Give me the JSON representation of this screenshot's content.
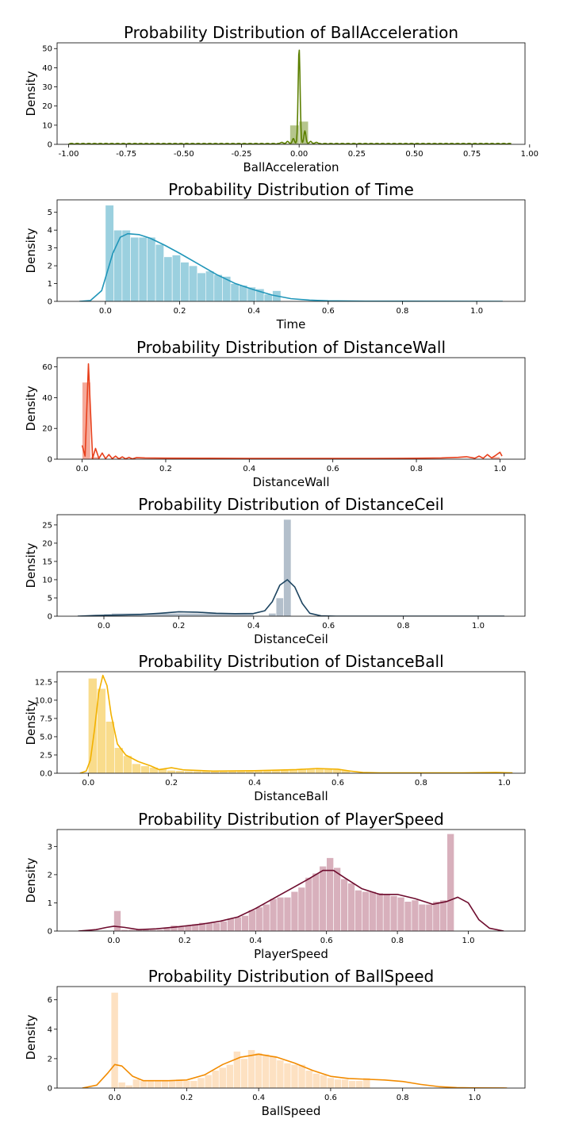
{
  "figure": {
    "chart_data": [
      {
        "type": "histogram",
        "title": "Probability Distribution of BallAcceleration",
        "xlabel": "BallAcceleration",
        "ylabel": "Density",
        "color": "#5b7f00",
        "xlim": [
          -1.05,
          0.98
        ],
        "ylim": [
          0,
          53
        ],
        "xticks": [
          -1.0,
          -0.75,
          -0.5,
          -0.25,
          0.0,
          0.25,
          0.5,
          0.75,
          1.0
        ],
        "xtick_labels": [
          "-1.00",
          "-0.75",
          "-0.50",
          "-0.25",
          "0.00",
          "0.25",
          "0.50",
          "0.75",
          "1.00"
        ],
        "yticks": [
          0,
          10,
          20,
          30,
          40,
          50
        ],
        "ytick_labels": [
          "0",
          "10",
          "20",
          "30",
          "40",
          "50"
        ],
        "bins": [
          {
            "x0": -0.08,
            "x1": -0.04,
            "h": 0.5
          },
          {
            "x0": -0.04,
            "x1": 0.0,
            "h": 10
          },
          {
            "x0": 0.0,
            "x1": 0.04,
            "h": 12
          },
          {
            "x0": 0.04,
            "x1": 0.08,
            "h": 0.5
          }
        ],
        "kde_kind": "oscillating",
        "kde": {
          "range": [
            -1.0,
            0.92
          ],
          "peaks": [
            [
              -0.025,
              3
            ],
            [
              0.0,
              50
            ],
            [
              0.025,
              7
            ],
            [
              -0.05,
              1.5
            ],
            [
              0.05,
              1.5
            ],
            [
              -0.075,
              1
            ],
            [
              0.075,
              1
            ]
          ],
          "osc_amp": 0.5,
          "osc_period": 0.025
        }
      },
      {
        "type": "histogram",
        "title": "Probability Distribution of Time",
        "xlabel": "Time",
        "ylabel": "Density",
        "color": "#2196b9",
        "xlim": [
          -0.13,
          1.13
        ],
        "ylim": [
          0,
          5.7
        ],
        "xticks": [
          0.0,
          0.2,
          0.4,
          0.6,
          0.8,
          1.0
        ],
        "xtick_labels": [
          "0.0",
          "0.2",
          "0.4",
          "0.6",
          "0.8",
          "1.0"
        ],
        "yticks": [
          0,
          1,
          2,
          3,
          4,
          5
        ],
        "ytick_labels": [
          "0",
          "1",
          "2",
          "3",
          "4",
          "5"
        ],
        "bins_start": 0.0,
        "bin_width": 0.0225,
        "bin_heights": [
          5.4,
          4.0,
          4.0,
          3.6,
          3.6,
          3.6,
          3.2,
          2.5,
          2.6,
          2.2,
          2.0,
          1.6,
          1.7,
          1.5,
          1.4,
          1.0,
          0.9,
          0.8,
          0.7,
          0.4,
          0.6
        ],
        "kde_kind": "points",
        "kde": [
          [
            -0.07,
            0
          ],
          [
            -0.04,
            0.05
          ],
          [
            -0.01,
            0.6
          ],
          [
            0.02,
            2.7
          ],
          [
            0.04,
            3.6
          ],
          [
            0.06,
            3.8
          ],
          [
            0.09,
            3.75
          ],
          [
            0.12,
            3.55
          ],
          [
            0.16,
            3.15
          ],
          [
            0.2,
            2.7
          ],
          [
            0.25,
            2.1
          ],
          [
            0.3,
            1.5
          ],
          [
            0.35,
            1.0
          ],
          [
            0.4,
            0.65
          ],
          [
            0.45,
            0.35
          ],
          [
            0.5,
            0.15
          ],
          [
            0.55,
            0.07
          ],
          [
            0.6,
            0.03
          ],
          [
            0.7,
            0.01
          ],
          [
            0.8,
            0.01
          ],
          [
            1.07,
            0.0
          ]
        ]
      },
      {
        "type": "histogram",
        "title": "Probability Distribution of DistanceWall",
        "xlabel": "DistanceWall",
        "ylabel": "Density",
        "color": "#e8401c",
        "xlim": [
          -0.06,
          1.06
        ],
        "ylim": [
          0,
          66
        ],
        "xticks": [
          0.0,
          0.2,
          0.4,
          0.6,
          0.8,
          1.0
        ],
        "xtick_labels": [
          "0.0",
          "0.2",
          "0.4",
          "0.6",
          "0.8",
          "1.0"
        ],
        "yticks": [
          0,
          20,
          40,
          60
        ],
        "ytick_labels": [
          "0",
          "20",
          "40",
          "60"
        ],
        "bins": [
          {
            "x0": 0.0,
            "x1": 0.02,
            "h": 50
          },
          {
            "x0": 0.02,
            "x1": 0.04,
            "h": 1.5
          },
          {
            "x0": 0.98,
            "x1": 1.0,
            "h": 1.5
          }
        ],
        "kde_kind": "points",
        "kde": [
          [
            0.0,
            9
          ],
          [
            0.007,
            2
          ],
          [
            0.015,
            62
          ],
          [
            0.025,
            0.5
          ],
          [
            0.032,
            7
          ],
          [
            0.04,
            0.5
          ],
          [
            0.048,
            4
          ],
          [
            0.056,
            0.3
          ],
          [
            0.064,
            3
          ],
          [
            0.072,
            0.3
          ],
          [
            0.08,
            2
          ],
          [
            0.088,
            0.2
          ],
          [
            0.096,
            1.5
          ],
          [
            0.104,
            0.2
          ],
          [
            0.112,
            1.2
          ],
          [
            0.12,
            0.2
          ],
          [
            0.13,
            1.0
          ],
          [
            0.15,
            0.8
          ],
          [
            0.2,
            0.7
          ],
          [
            0.3,
            0.6
          ],
          [
            0.4,
            0.5
          ],
          [
            0.5,
            0.5
          ],
          [
            0.6,
            0.5
          ],
          [
            0.7,
            0.5
          ],
          [
            0.8,
            0.6
          ],
          [
            0.86,
            0.8
          ],
          [
            0.9,
            1.2
          ],
          [
            0.92,
            1.6
          ],
          [
            0.94,
            0.6
          ],
          [
            0.95,
            2.0
          ],
          [
            0.96,
            0.6
          ],
          [
            0.97,
            3.0
          ],
          [
            0.98,
            0.8
          ],
          [
            0.99,
            2.5
          ],
          [
            1.0,
            4.5
          ],
          [
            1.005,
            2
          ]
        ]
      },
      {
        "type": "histogram",
        "title": "Probability Distribution of DistanceCeil",
        "xlabel": "DistanceCeil",
        "ylabel": "Density",
        "color": "#1d4460",
        "bar_color": "#56708b",
        "xlim": [
          -0.125,
          1.125
        ],
        "ylim": [
          0,
          27.8
        ],
        "xticks": [
          0.0,
          0.2,
          0.4,
          0.6,
          0.8,
          1.0
        ],
        "xtick_labels": [
          "0.0",
          "0.2",
          "0.4",
          "0.6",
          "0.8",
          "1.0"
        ],
        "yticks": [
          0,
          5,
          10,
          15,
          20,
          25
        ],
        "ytick_labels": [
          "0",
          "5",
          "10",
          "15",
          "20",
          "25"
        ],
        "bins": [
          {
            "x0": 0.0,
            "x1": 0.02,
            "h": 0.6
          },
          {
            "x0": 0.02,
            "x1": 0.4,
            "h": 0.8
          },
          {
            "x0": 0.44,
            "x1": 0.46,
            "h": 0.8
          },
          {
            "x0": 0.46,
            "x1": 0.48,
            "h": 5
          },
          {
            "x0": 0.48,
            "x1": 0.5,
            "h": 26.5
          }
        ],
        "kde_kind": "points",
        "kde": [
          [
            -0.07,
            0
          ],
          [
            -0.02,
            0.2
          ],
          [
            0.05,
            0.35
          ],
          [
            0.1,
            0.5
          ],
          [
            0.15,
            0.8
          ],
          [
            0.2,
            1.2
          ],
          [
            0.25,
            1.1
          ],
          [
            0.3,
            0.8
          ],
          [
            0.35,
            0.7
          ],
          [
            0.4,
            0.75
          ],
          [
            0.43,
            1.5
          ],
          [
            0.45,
            4
          ],
          [
            0.47,
            8.5
          ],
          [
            0.49,
            10
          ],
          [
            0.51,
            8
          ],
          [
            0.53,
            3.5
          ],
          [
            0.55,
            0.8
          ],
          [
            0.58,
            0.1
          ],
          [
            0.62,
            0
          ],
          [
            1.07,
            0
          ]
        ]
      },
      {
        "type": "histogram",
        "title": "Probability Distribution of DistanceBall",
        "xlabel": "DistanceBall",
        "ylabel": "Density",
        "color": "#f2b100",
        "xlim": [
          -0.075,
          1.05
        ],
        "ylim": [
          0,
          13.9
        ],
        "xticks": [
          0.0,
          0.2,
          0.4,
          0.6,
          0.8,
          1.0
        ],
        "xtick_labels": [
          "0.0",
          "0.2",
          "0.4",
          "0.6",
          "0.8",
          "1.0"
        ],
        "yticks": [
          0,
          2.5,
          5.0,
          7.5,
          10.0,
          12.5
        ],
        "ytick_labels": [
          "0.0",
          "2.5",
          "5.0",
          "7.5",
          "10.0",
          "12.5"
        ],
        "bins_start": 0.0,
        "bin_width": 0.021,
        "bin_heights": [
          13,
          11.6,
          7.1,
          3.5,
          2.4,
          1.3,
          1.0,
          0.8,
          0.6,
          0.4,
          0.35,
          0.3,
          0.3,
          0.3,
          0.3,
          0.3,
          0.3,
          0.3,
          0.3,
          0.35,
          0.4,
          0.45,
          0.5,
          0.55,
          0.55,
          0.6,
          0.7,
          0.6,
          0.5,
          0.4,
          0.1
        ],
        "kde_kind": "points",
        "kde": [
          [
            -0.02,
            0
          ],
          [
            -0.005,
            0.3
          ],
          [
            0.005,
            1.8
          ],
          [
            0.015,
            6
          ],
          [
            0.025,
            11
          ],
          [
            0.035,
            13.4
          ],
          [
            0.045,
            12
          ],
          [
            0.055,
            8
          ],
          [
            0.07,
            4
          ],
          [
            0.09,
            2.5
          ],
          [
            0.12,
            1.6
          ],
          [
            0.15,
            1.0
          ],
          [
            0.17,
            0.5
          ],
          [
            0.2,
            0.75
          ],
          [
            0.23,
            0.45
          ],
          [
            0.3,
            0.3
          ],
          [
            0.4,
            0.35
          ],
          [
            0.5,
            0.5
          ],
          [
            0.55,
            0.65
          ],
          [
            0.6,
            0.55
          ],
          [
            0.63,
            0.3
          ],
          [
            0.66,
            0.1
          ],
          [
            0.7,
            0.05
          ],
          [
            0.8,
            0.05
          ],
          [
            0.9,
            0.05
          ],
          [
            0.98,
            0.1
          ],
          [
            1.02,
            0.05
          ]
        ]
      },
      {
        "type": "histogram",
        "title": "Probability Distribution of PlayerSpeed",
        "xlabel": "PlayerSpeed",
        "ylabel": "Density",
        "color": "#6e0c2e",
        "bar_color": "#a8506b",
        "xlim": [
          -0.16,
          1.16
        ],
        "ylim": [
          0,
          3.6
        ],
        "xticks": [
          0.0,
          0.2,
          0.4,
          0.6,
          0.8,
          1.0
        ],
        "xtick_labels": [
          "0.0",
          "0.2",
          "0.4",
          "0.6",
          "0.8",
          "1.0"
        ],
        "yticks": [
          0,
          1,
          2,
          3
        ],
        "ytick_labels": [
          "0",
          "1",
          "2",
          "3"
        ],
        "bins_start": 0.0,
        "bin_width": 0.02,
        "bin_heights": [
          0.72,
          0.05,
          0.05,
          0.05,
          0.05,
          0.05,
          0.05,
          0.1,
          0.2,
          0.15,
          0.2,
          0.25,
          0.3,
          0.3,
          0.3,
          0.35,
          0.45,
          0.5,
          0.55,
          0.75,
          0.85,
          0.95,
          1.15,
          1.2,
          1.2,
          1.4,
          1.55,
          1.9,
          2.05,
          2.3,
          2.6,
          2.25,
          1.85,
          1.7,
          1.45,
          1.4,
          1.4,
          1.35,
          1.3,
          1.25,
          1.2,
          1.05,
          1.1,
          0.95,
          0.95,
          1.05,
          1.1,
          3.45
        ],
        "kde_kind": "points",
        "kde": [
          [
            -0.1,
            0.0
          ],
          [
            -0.05,
            0.05
          ],
          [
            -0.02,
            0.13
          ],
          [
            0.0,
            0.17
          ],
          [
            0.03,
            0.13
          ],
          [
            0.07,
            0.05
          ],
          [
            0.12,
            0.08
          ],
          [
            0.18,
            0.15
          ],
          [
            0.25,
            0.25
          ],
          [
            0.3,
            0.35
          ],
          [
            0.35,
            0.5
          ],
          [
            0.4,
            0.8
          ],
          [
            0.45,
            1.15
          ],
          [
            0.5,
            1.5
          ],
          [
            0.55,
            1.85
          ],
          [
            0.59,
            2.15
          ],
          [
            0.62,
            2.15
          ],
          [
            0.65,
            1.9
          ],
          [
            0.7,
            1.5
          ],
          [
            0.75,
            1.3
          ],
          [
            0.8,
            1.3
          ],
          [
            0.85,
            1.15
          ],
          [
            0.9,
            0.95
          ],
          [
            0.94,
            1.05
          ],
          [
            0.97,
            1.2
          ],
          [
            1.0,
            1.0
          ],
          [
            1.03,
            0.4
          ],
          [
            1.06,
            0.1
          ],
          [
            1.1,
            0.0
          ]
        ]
      },
      {
        "type": "histogram",
        "title": "Probability Distribution of BallSpeed",
        "xlabel": "BallSpeed",
        "ylabel": "Density",
        "color": "#f28b00",
        "bar_color": "#fbbd78",
        "xlim": [
          -0.16,
          1.14
        ],
        "ylim": [
          0,
          6.9
        ],
        "xticks": [
          0.0,
          0.2,
          0.4,
          0.6,
          0.8,
          1.0
        ],
        "xtick_labels": [
          "0.0",
          "0.2",
          "0.4",
          "0.6",
          "0.8",
          "1.0"
        ],
        "yticks": [
          0,
          2,
          4,
          6
        ],
        "ytick_labels": [
          "0",
          "2",
          "4",
          "6"
        ],
        "bins_start": -0.01,
        "bin_width": 0.02,
        "bin_heights": [
          6.5,
          0.4,
          0.2,
          0.6,
          0.5,
          0.5,
          0.5,
          0.5,
          0.5,
          0.6,
          0.5,
          0.5,
          0.7,
          0.9,
          1.2,
          1.4,
          1.6,
          2.5,
          2.0,
          2.6,
          2.4,
          2.3,
          2.2,
          1.9,
          1.7,
          1.6,
          1.6,
          1.2,
          1.0,
          0.9,
          0.7,
          0.6,
          0.6,
          0.5,
          0.5,
          0.7
        ],
        "kde_kind": "points",
        "kde": [
          [
            -0.09,
            0
          ],
          [
            -0.05,
            0.2
          ],
          [
            -0.02,
            1.0
          ],
          [
            0.0,
            1.6
          ],
          [
            0.02,
            1.5
          ],
          [
            0.05,
            0.8
          ],
          [
            0.08,
            0.5
          ],
          [
            0.15,
            0.5
          ],
          [
            0.2,
            0.55
          ],
          [
            0.25,
            0.9
          ],
          [
            0.3,
            1.6
          ],
          [
            0.35,
            2.1
          ],
          [
            0.4,
            2.3
          ],
          [
            0.45,
            2.1
          ],
          [
            0.5,
            1.7
          ],
          [
            0.55,
            1.2
          ],
          [
            0.6,
            0.8
          ],
          [
            0.65,
            0.65
          ],
          [
            0.7,
            0.6
          ],
          [
            0.75,
            0.55
          ],
          [
            0.8,
            0.45
          ],
          [
            0.85,
            0.25
          ],
          [
            0.9,
            0.1
          ],
          [
            0.95,
            0.03
          ],
          [
            1.0,
            0.01
          ],
          [
            1.09,
            0
          ]
        ]
      }
    ]
  }
}
